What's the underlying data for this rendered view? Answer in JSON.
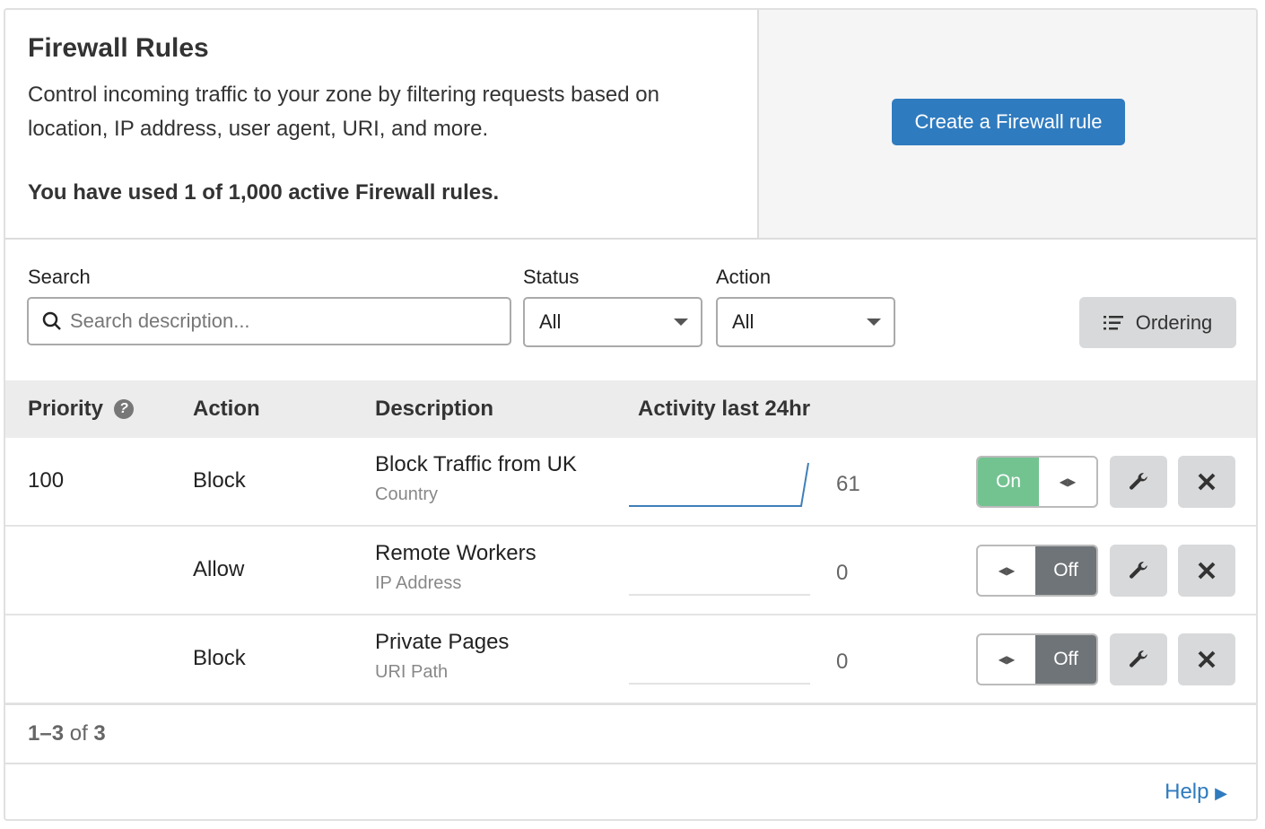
{
  "header": {
    "title": "Firewall Rules",
    "description": "Control incoming traffic to your zone by filtering requests based on location, IP address, user agent, URI, and more.",
    "usage": "You have used 1 of 1,000 active Firewall rules.",
    "create_button": "Create a Firewall rule"
  },
  "filters": {
    "search_label": "Search",
    "search_placeholder": "Search description...",
    "status_label": "Status",
    "status_value": "All",
    "action_label": "Action",
    "action_value": "All",
    "ordering_button": "Ordering"
  },
  "table": {
    "columns": [
      "Priority",
      "Action",
      "Description",
      "Activity last 24hr"
    ],
    "rows": [
      {
        "priority": "100",
        "action": "Block",
        "description": "Block Traffic from UK",
        "type": "Country",
        "activity": "61",
        "enabled": true,
        "toggle_label": "On"
      },
      {
        "priority": "",
        "action": "Allow",
        "description": "Remote Workers",
        "type": "IP Address",
        "activity": "0",
        "enabled": false,
        "toggle_label": "Off"
      },
      {
        "priority": "",
        "action": "Block",
        "description": "Private Pages",
        "type": "URI Path",
        "activity": "0",
        "enabled": false,
        "toggle_label": "Off"
      }
    ]
  },
  "pagination": {
    "range": "1–3",
    "of": "of",
    "total": "3"
  },
  "footer": {
    "help_link": "Help"
  },
  "colors": {
    "accent": "#2f7bbf",
    "on": "#73c391",
    "off": "#6f7478",
    "sparkline": "#3f7fb8"
  }
}
